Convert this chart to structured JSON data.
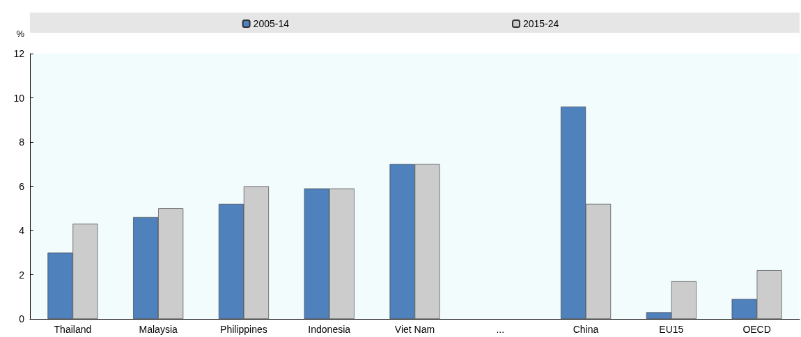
{
  "chart_data": {
    "type": "bar",
    "ylabel": "%",
    "categories": [
      "Thailand",
      "Malaysia",
      "Philippines",
      "Indonesia",
      "Viet Nam",
      "...",
      "China",
      "EU15",
      "OECD"
    ],
    "series": [
      {
        "name": "2005-14",
        "color": "#4f81bd",
        "values": [
          3.0,
          4.6,
          5.2,
          5.9,
          7.0,
          null,
          9.6,
          0.3,
          0.9
        ]
      },
      {
        "name": "2015-24",
        "color": "#cccccc",
        "values": [
          4.3,
          5.0,
          6.0,
          5.9,
          7.0,
          null,
          5.2,
          1.7,
          2.2
        ]
      }
    ],
    "ylim": [
      0,
      12
    ],
    "yticks": [
      0,
      2,
      4,
      6,
      8,
      10,
      12
    ],
    "grid": false,
    "legend": "top"
  }
}
